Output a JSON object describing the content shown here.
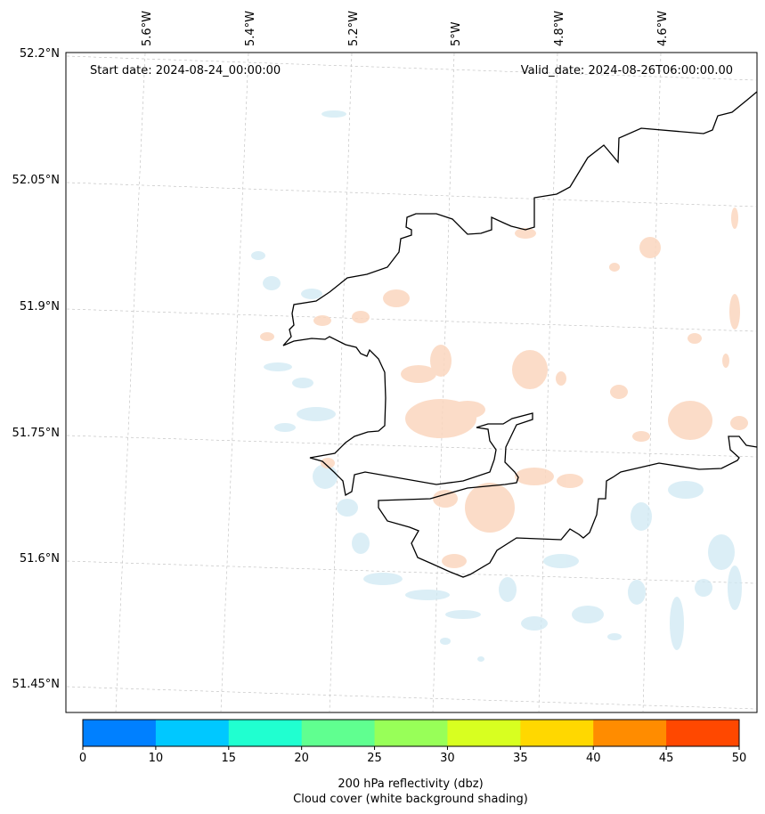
{
  "map": {
    "start_label": "Start date: 2024-08-24_00:00:00",
    "valid_label": "Valid_date: 2024-08-26T06:00:00.00",
    "lon_labels": [
      "5.6°W",
      "5.4°W",
      "5.2°W",
      "5°W",
      "4.8°W",
      "4.6°W"
    ],
    "lat_labels": [
      "52.2°N",
      "52.05°N",
      "51.9°N",
      "51.75°N",
      "51.6°N",
      "51.45°N"
    ]
  },
  "colorbar": {
    "ticks": [
      "0",
      "10",
      "15",
      "20",
      "25",
      "30",
      "35",
      "40",
      "45",
      "50"
    ],
    "colors": [
      "#0080ff",
      "#00c8ff",
      "#20ffd0",
      "#60ff90",
      "#98ff58",
      "#d8ff20",
      "#ffd800",
      "#ff8c00",
      "#ff4800"
    ],
    "label_line1": "200 hPa reflectivity (dbz)",
    "label_line2": "Cloud cover (white background shading)"
  }
}
